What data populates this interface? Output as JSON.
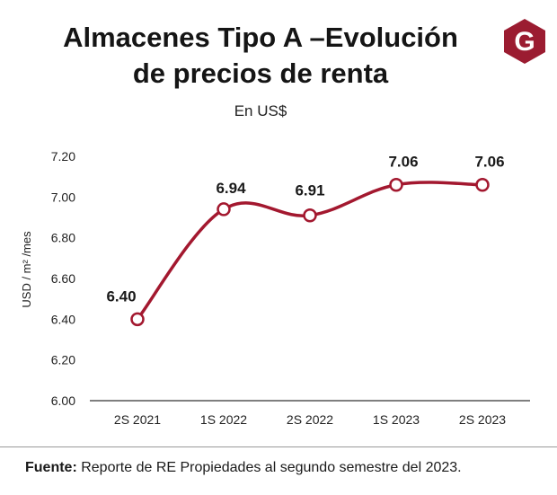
{
  "header": {
    "title_line1": "Almacenes Tipo A –Evolución",
    "title_line2": "de precios de renta",
    "subtitle": "En US$"
  },
  "logo": {
    "letter": "G",
    "color": "#9b1c31"
  },
  "colors": {
    "line": "#a3182f",
    "marker_fill": "#ffffff",
    "axis": "#333333",
    "text": "#1a1a1a"
  },
  "chart_data": {
    "type": "line",
    "title": "Almacenes Tipo A –Evolución de precios de renta",
    "subtitle": "En US$",
    "xlabel": "",
    "ylabel": "USD / m² /mes",
    "categories": [
      "2S 2021",
      "1S 2022",
      "2S 2022",
      "1S 2023",
      "2S 2023"
    ],
    "series": [
      {
        "name": "Precio de renta",
        "values": [
          6.4,
          6.94,
          6.91,
          7.06,
          7.06
        ]
      }
    ],
    "data_labels": [
      "6.40",
      "6.94",
      "6.91",
      "7.06",
      "7.06"
    ],
    "yticks": [
      6.0,
      6.2,
      6.4,
      6.6,
      6.8,
      7.0,
      7.2
    ],
    "ytick_labels": [
      "6.00",
      "6.20",
      "6.40",
      "6.60",
      "6.80",
      "7.00",
      "7.20"
    ],
    "ylim": [
      6.0,
      7.2
    ],
    "grid": false,
    "legend": "none"
  },
  "footer": {
    "source_label": "Fuente:",
    "source_text": " Reporte de RE Propiedades al segundo semestre del 2023."
  }
}
